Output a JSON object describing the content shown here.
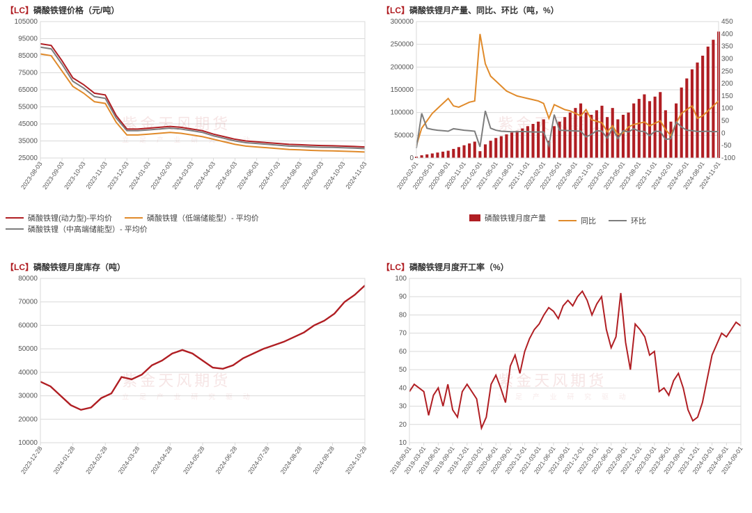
{
  "watermark_text": "紫金天风期货",
  "watermark_sub": "立 足 产 业  研 究 驱 动",
  "colors": {
    "red": "#b01e23",
    "orange": "#e08a2a",
    "gray": "#7d7d7d",
    "grid": "#d9d9d9",
    "axis_text": "#555555",
    "bg": "#ffffff"
  },
  "fontsize": {
    "title": 12,
    "axis": 10,
    "legend": 11
  },
  "chart1": {
    "title_prefix": "【LC】",
    "title": "磷酸铁锂价格（元/吨）",
    "type": "line",
    "xticks": [
      "2023-08-03",
      "2023-09-03",
      "2023-10-03",
      "2023-11-03",
      "2023-12-03",
      "2024-01-03",
      "2024-02-03",
      "2024-03-03",
      "2024-04-03",
      "2024-05-03",
      "2024-06-03",
      "2024-07-03",
      "2024-08-03",
      "2024-09-03",
      "2024-10-03",
      "2024-11-03"
    ],
    "ylim": [
      25000,
      105000
    ],
    "ytick_step": 10000,
    "line_width": 2,
    "series": [
      {
        "name": "磷酸铁锂(动力型)-平均价",
        "color": "#b01e23",
        "values": [
          92000,
          91000,
          82000,
          72000,
          68000,
          63000,
          62000,
          50000,
          42000,
          42000,
          42500,
          43000,
          43500,
          43000,
          42000,
          41000,
          39000,
          37500,
          36000,
          35000,
          34500,
          34000,
          33500,
          33000,
          32800,
          32500,
          32300,
          32200,
          32000,
          31800,
          31500
        ]
      },
      {
        "name": "磷酸铁锂（低端储能型）- 平均价",
        "color": "#e08a2a",
        "values": [
          86000,
          85000,
          76000,
          67000,
          63000,
          58000,
          57000,
          46000,
          38500,
          38500,
          39000,
          39500,
          40000,
          39500,
          38500,
          37500,
          36000,
          34500,
          33000,
          32000,
          31500,
          31000,
          30500,
          30000,
          29800,
          29500,
          29300,
          29200,
          29000,
          28800,
          28500
        ]
      },
      {
        "name": "磷酸铁锂（中高端储能型）- 平均价",
        "color": "#7d7d7d",
        "values": [
          90000,
          89000,
          80000,
          70000,
          66000,
          61000,
          60000,
          48500,
          41000,
          41000,
          41500,
          42000,
          42500,
          42000,
          41000,
          40000,
          38000,
          36500,
          35000,
          34000,
          33500,
          33000,
          32500,
          32000,
          31800,
          31500,
          31300,
          31200,
          31000,
          30800,
          30500
        ]
      }
    ]
  },
  "chart2": {
    "title_prefix": "【LC】",
    "title": "磷酸铁锂月产量、同比、环比（吨，%）",
    "type": "bar+line",
    "xticks": [
      "2020-02-01",
      "2020-05-01",
      "2020-08-01",
      "2020-11-01",
      "2021-02-01",
      "2021-05-01",
      "2021-08-01",
      "2021-11-01",
      "2022-02-01",
      "2022-05-01",
      "2022-08-01",
      "2022-11-01",
      "2023-02-01",
      "2023-05-01",
      "2023-08-01",
      "2023-11-01",
      "2024-02-01",
      "2024-05-01",
      "2024-08-01",
      "2024-11-01"
    ],
    "y1": {
      "lim": [
        0,
        300000
      ],
      "step": 50000,
      "label": ""
    },
    "y2": {
      "lim": [
        -100,
        450
      ],
      "step": 50,
      "label": ""
    },
    "bar_color": "#b01e23",
    "bar_width": 0.55,
    "line_width": 2,
    "bars": {
      "name": "磷酸铁锂月度产量",
      "values": [
        3000,
        6000,
        8000,
        10000,
        12000,
        14000,
        16000,
        20000,
        24000,
        28000,
        32000,
        36000,
        15000,
        30000,
        38000,
        44000,
        48000,
        52000,
        56000,
        60000,
        65000,
        70000,
        75000,
        80000,
        85000,
        38000,
        70000,
        80000,
        90000,
        100000,
        110000,
        120000,
        100000,
        95000,
        105000,
        115000,
        90000,
        110000,
        85000,
        95000,
        100000,
        120000,
        130000,
        140000,
        125000,
        135000,
        145000,
        105000,
        80000,
        120000,
        155000,
        175000,
        195000,
        210000,
        225000,
        245000,
        260000,
        278000
      ]
    },
    "line_yoy": {
      "name": "同比",
      "color": "#e08a2a",
      "values": [
        -50,
        20,
        50,
        80,
        100,
        120,
        140,
        110,
        105,
        115,
        125,
        130,
        400,
        280,
        230,
        210,
        190,
        170,
        160,
        150,
        145,
        140,
        135,
        130,
        120,
        60,
        115,
        105,
        95,
        90,
        80,
        70,
        95,
        55,
        48,
        42,
        5,
        30,
        -5,
        0,
        25,
        35,
        40,
        45,
        30,
        40,
        50,
        15,
        -10,
        40,
        80,
        95,
        110,
        60,
        70,
        90,
        110,
        130
      ]
    },
    "line_mom": {
      "name": "环比",
      "color": "#7d7d7d",
      "values": [
        -60,
        80,
        20,
        15,
        12,
        10,
        8,
        18,
        15,
        12,
        10,
        8,
        -55,
        90,
        20,
        12,
        8,
        7,
        6,
        6,
        7,
        6,
        5,
        5,
        5,
        -50,
        75,
        12,
        11,
        10,
        9,
        8,
        -15,
        -5,
        10,
        8,
        -20,
        20,
        -22,
        10,
        5,
        18,
        8,
        7,
        -10,
        8,
        7,
        -25,
        -22,
        45,
        25,
        12,
        10,
        7,
        7,
        8,
        6,
        7
      ]
    }
  },
  "chart3": {
    "title_prefix": "【LC】",
    "title": "磷酸铁锂月度库存（吨）",
    "type": "line",
    "xticks": [
      "2023-12-28",
      "2024-01-28",
      "2024-02-28",
      "2024-03-28",
      "2024-04-28",
      "2024-05-28",
      "2024-06-28",
      "2024-07-28",
      "2024-08-28",
      "2024-09-28",
      "2024-10-28"
    ],
    "ylim": [
      10000,
      80000
    ],
    "ytick_step": 10000,
    "line_width": 2.4,
    "series": [
      {
        "name": "库存",
        "color": "#b01e23",
        "values": [
          36000,
          34000,
          30000,
          26000,
          24000,
          25000,
          29000,
          31000,
          38000,
          37000,
          39000,
          43000,
          45000,
          48000,
          49500,
          48000,
          45000,
          42000,
          41500,
          43000,
          46000,
          48000,
          50000,
          51500,
          53000,
          55000,
          57000,
          60000,
          62000,
          65000,
          70000,
          73000,
          77000
        ]
      }
    ]
  },
  "chart4": {
    "title_prefix": "【LC】",
    "title": "磷酸铁锂月度开工率（%）",
    "type": "line",
    "xticks": [
      "2018-09-01",
      "2019-03-01",
      "2019-06-01",
      "2019-09-01",
      "2019-12-01",
      "2020-03-01",
      "2020-06-01",
      "2020-09-01",
      "2020-12-01",
      "2021-03-01",
      "2021-06-01",
      "2021-09-01",
      "2021-12-01",
      "2022-03-01",
      "2022-06-01",
      "2022-09-01",
      "2022-12-01",
      "2023-03-01",
      "2023-06-01",
      "2023-09-01",
      "2023-12-01",
      "2024-03-01",
      "2024-06-01",
      "2024-09-01"
    ],
    "ylim": [
      10,
      100
    ],
    "ytick_step": 10,
    "line_width": 2,
    "series": [
      {
        "name": "开工率",
        "color": "#b01e23",
        "values": [
          38,
          42,
          40,
          38,
          25,
          36,
          40,
          30,
          42,
          28,
          24,
          38,
          42,
          38,
          34,
          18,
          24,
          42,
          47,
          40,
          32,
          52,
          58,
          48,
          60,
          67,
          72,
          75,
          80,
          84,
          82,
          78,
          85,
          88,
          85,
          90,
          93,
          88,
          80,
          86,
          90,
          72,
          62,
          68,
          92,
          65,
          50,
          75,
          72,
          68,
          58,
          60,
          38,
          40,
          36,
          44,
          48,
          40,
          28,
          22,
          24,
          32,
          45,
          58,
          64,
          70,
          68,
          72,
          76,
          74
        ]
      }
    ]
  }
}
